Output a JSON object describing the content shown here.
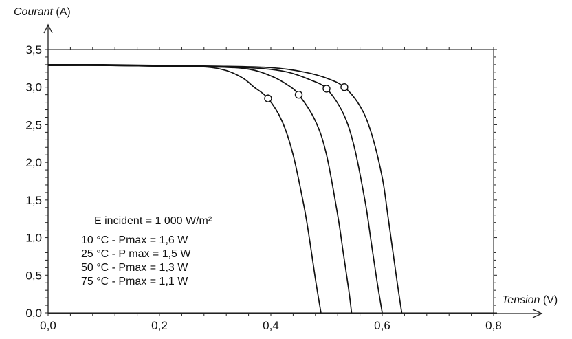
{
  "chart_data": {
    "type": "line",
    "title": "",
    "xlabel": "Tension",
    "xunit": "(V)",
    "ylabel": "Courant",
    "yunit": "(A)",
    "xlim": [
      0,
      0.8
    ],
    "ylim": [
      0,
      3.5
    ],
    "xticks": [
      "0,0",
      "0,2",
      "0,4",
      "0,6",
      "0,8"
    ],
    "yticks": [
      "0,0",
      "0,5",
      "1,0",
      "1,5",
      "2,0",
      "2,5",
      "3,0",
      "3,5"
    ],
    "grid": false,
    "annotation": {
      "lines": [
        "E incident = 1 000 W/m²",
        "10 °C - Pmax = 1,6 W",
        "25 °C - P max = 1,5 W",
        "50 °C - Pmax = 1,3 W",
        "75 °C - Pmax = 1,1 W"
      ]
    },
    "series": [
      {
        "voc": 0.49,
        "isc": 3.29,
        "mpp": [
          0.395,
          2.85
        ],
        "x": [
          0,
          0.1,
          0.2,
          0.28,
          0.32,
          0.35,
          0.37,
          0.395,
          0.42,
          0.44,
          0.46,
          0.47,
          0.48,
          0.49
        ],
        "y": [
          3.29,
          3.29,
          3.28,
          3.27,
          3.22,
          3.12,
          3.0,
          2.85,
          2.55,
          2.1,
          1.4,
          0.95,
          0.45,
          0.0
        ]
      },
      {
        "voc": 0.545,
        "isc": 3.29,
        "mpp": [
          0.45,
          2.9
        ],
        "x": [
          0,
          0.1,
          0.2,
          0.3,
          0.36,
          0.4,
          0.43,
          0.45,
          0.48,
          0.5,
          0.52,
          0.53,
          0.54,
          0.545
        ],
        "y": [
          3.29,
          3.29,
          3.28,
          3.27,
          3.24,
          3.15,
          3.03,
          2.9,
          2.55,
          2.1,
          1.3,
          0.8,
          0.3,
          0.0
        ]
      },
      {
        "voc": 0.6,
        "isc": 3.29,
        "mpp": [
          0.5,
          2.98
        ],
        "x": [
          0,
          0.1,
          0.2,
          0.3,
          0.38,
          0.43,
          0.47,
          0.5,
          0.53,
          0.55,
          0.57,
          0.58,
          0.59,
          0.6
        ],
        "y": [
          3.29,
          3.29,
          3.28,
          3.27,
          3.25,
          3.2,
          3.1,
          2.98,
          2.65,
          2.2,
          1.45,
          0.95,
          0.45,
          0.0
        ]
      },
      {
        "voc": 0.635,
        "isc": 3.3,
        "mpp": [
          0.532,
          3.0
        ],
        "x": [
          0,
          0.1,
          0.2,
          0.3,
          0.4,
          0.46,
          0.5,
          0.532,
          0.56,
          0.58,
          0.6,
          0.61,
          0.625,
          0.635
        ],
        "y": [
          3.3,
          3.3,
          3.29,
          3.28,
          3.26,
          3.2,
          3.12,
          3.0,
          2.75,
          2.4,
          1.8,
          1.3,
          0.5,
          0.0
        ]
      }
    ]
  }
}
